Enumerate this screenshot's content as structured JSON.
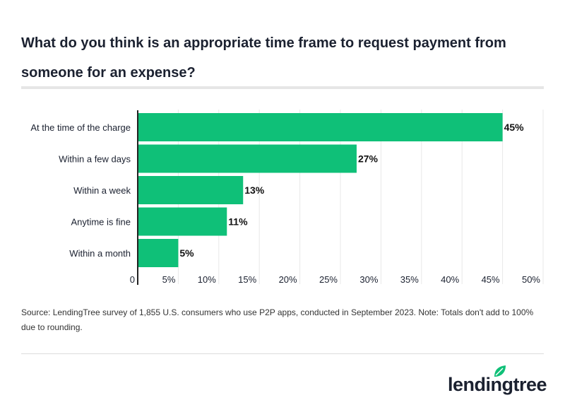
{
  "title": "What do you think is an appropriate time frame to request payment from someone for an expense?",
  "source": "Source: LendingTree survey of 1,855 U.S. consumers who use P2P apps, conducted in September 2023. Note: Totals don't add to 100% due to rounding.",
  "logo": {
    "text": "lendingtree",
    "icon": "leaf-icon",
    "color": "#1b2130",
    "leaf_color": "#0fc078"
  },
  "chart_data": {
    "type": "bar",
    "orientation": "horizontal",
    "categories": [
      "At the time of the charge",
      "Within a few days",
      "Within a week",
      "Anytime is fine",
      "Within a month"
    ],
    "values": [
      45,
      27,
      13,
      11,
      5
    ],
    "data_labels": [
      "45%",
      "27%",
      "13%",
      "11%",
      "5%"
    ],
    "xlim": [
      0,
      50
    ],
    "x_ticks": [
      0,
      5,
      10,
      15,
      20,
      25,
      30,
      35,
      40,
      45,
      50
    ],
    "x_tick_labels": [
      "0",
      "5%",
      "10%",
      "15%",
      "20%",
      "25%",
      "30%",
      "35%",
      "40%",
      "45%",
      "50%"
    ],
    "grid": "vertical",
    "bar_color": "#0fc078"
  }
}
